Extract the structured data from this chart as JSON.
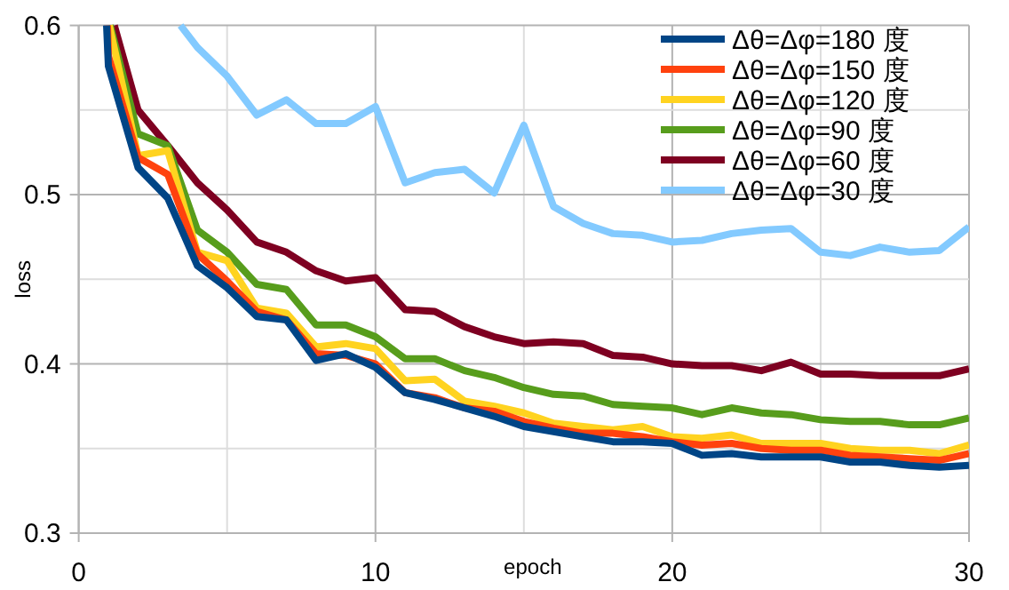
{
  "chart_data": {
    "type": "line",
    "xlabel": "epoch",
    "ylabel": "loss",
    "xlim": [
      0,
      30
    ],
    "ylim": [
      0.3,
      0.6
    ],
    "xticks": [
      0,
      10,
      20,
      30
    ],
    "yticks": [
      0.3,
      0.4,
      0.5,
      0.6
    ],
    "grid": true,
    "legend": "top right",
    "marker": "none",
    "line_style": "solid",
    "series": [
      {
        "name": "Δθ=Δφ=180 度",
        "color": "#004586",
        "x": [
          0.94,
          1,
          2,
          3,
          4,
          5,
          6,
          7,
          8,
          9,
          10,
          11,
          12,
          13,
          14,
          15,
          16,
          17,
          18,
          19,
          20,
          21,
          22,
          23,
          24,
          25,
          26,
          27,
          28,
          29,
          30
        ],
        "values": [
          0.6,
          0.576,
          0.516,
          0.498,
          0.458,
          0.445,
          0.428,
          0.426,
          0.402,
          0.406,
          0.398,
          0.383,
          0.379,
          0.374,
          0.369,
          0.363,
          0.36,
          0.357,
          0.354,
          0.354,
          0.353,
          0.346,
          0.347,
          0.345,
          0.345,
          0.345,
          0.342,
          0.342,
          0.34,
          0.339,
          0.34
        ]
      },
      {
        "name": "Δθ=Δφ=150 度",
        "color": "#ff420e",
        "x": [
          0.97,
          1,
          2,
          3,
          4,
          5,
          6,
          7,
          8,
          9,
          10,
          11,
          12,
          13,
          14,
          15,
          16,
          17,
          18,
          19,
          20,
          21,
          22,
          23,
          24,
          25,
          26,
          27,
          28,
          29,
          30
        ],
        "values": [
          0.6,
          0.582,
          0.522,
          0.512,
          0.465,
          0.449,
          0.431,
          0.426,
          0.406,
          0.405,
          0.4,
          0.383,
          0.38,
          0.374,
          0.372,
          0.366,
          0.362,
          0.359,
          0.359,
          0.357,
          0.354,
          0.352,
          0.353,
          0.35,
          0.349,
          0.349,
          0.346,
          0.345,
          0.344,
          0.343,
          0.347
        ]
      },
      {
        "name": "Δθ=Δφ=120 度",
        "color": "#ffd320",
        "x": [
          1.03,
          2,
          3,
          4,
          5,
          6,
          7,
          8,
          9,
          10,
          11,
          12,
          13,
          14,
          15,
          16,
          17,
          18,
          19,
          20,
          21,
          22,
          23,
          24,
          25,
          26,
          27,
          28,
          29,
          30
        ],
        "values": [
          0.6,
          0.523,
          0.526,
          0.466,
          0.461,
          0.433,
          0.43,
          0.41,
          0.412,
          0.409,
          0.39,
          0.391,
          0.378,
          0.375,
          0.371,
          0.365,
          0.363,
          0.361,
          0.363,
          0.357,
          0.356,
          0.358,
          0.353,
          0.353,
          0.353,
          0.35,
          0.349,
          0.349,
          0.347,
          0.352
        ]
      },
      {
        "name": "Δθ=Δφ=90 度",
        "color": "#579d1c",
        "x": [
          1.06,
          2,
          3,
          4,
          5,
          6,
          7,
          8,
          9,
          10,
          11,
          12,
          13,
          14,
          15,
          16,
          17,
          18,
          19,
          20,
          21,
          22,
          23,
          24,
          25,
          26,
          27,
          28,
          29,
          30
        ],
        "values": [
          0.6,
          0.536,
          0.529,
          0.479,
          0.466,
          0.447,
          0.444,
          0.423,
          0.423,
          0.416,
          0.403,
          0.403,
          0.396,
          0.392,
          0.386,
          0.382,
          0.381,
          0.376,
          0.375,
          0.374,
          0.37,
          0.374,
          0.371,
          0.37,
          0.367,
          0.366,
          0.366,
          0.364,
          0.364,
          0.368
        ]
      },
      {
        "name": "Δθ=Δφ=60 度",
        "color": "#7e0021",
        "x": [
          1.2,
          2,
          3,
          4,
          5,
          6,
          7,
          8,
          9,
          10,
          11,
          12,
          13,
          14,
          15,
          16,
          17,
          18,
          19,
          20,
          21,
          22,
          23,
          24,
          25,
          26,
          27,
          28,
          29,
          30
        ],
        "values": [
          0.6,
          0.55,
          0.529,
          0.507,
          0.491,
          0.472,
          0.466,
          0.455,
          0.449,
          0.451,
          0.432,
          0.431,
          0.422,
          0.416,
          0.412,
          0.413,
          0.412,
          0.405,
          0.404,
          0.4,
          0.399,
          0.399,
          0.396,
          0.401,
          0.394,
          0.394,
          0.393,
          0.393,
          0.393,
          0.397
        ]
      },
      {
        "name": "Δθ=Δφ=30 度",
        "color": "#83caff",
        "x": [
          3.43,
          4,
          5,
          6,
          7,
          8,
          9,
          10,
          11,
          12,
          13,
          14,
          15,
          16,
          17,
          18,
          19,
          20,
          21,
          22,
          23,
          24,
          25,
          26,
          27,
          28,
          29,
          30
        ],
        "values": [
          0.6,
          0.587,
          0.57,
          0.547,
          0.556,
          0.542,
          0.542,
          0.552,
          0.507,
          0.513,
          0.515,
          0.501,
          0.541,
          0.493,
          0.483,
          0.477,
          0.476,
          0.472,
          0.473,
          0.477,
          0.479,
          0.48,
          0.466,
          0.464,
          0.469,
          0.466,
          0.467,
          0.481
        ]
      }
    ]
  }
}
